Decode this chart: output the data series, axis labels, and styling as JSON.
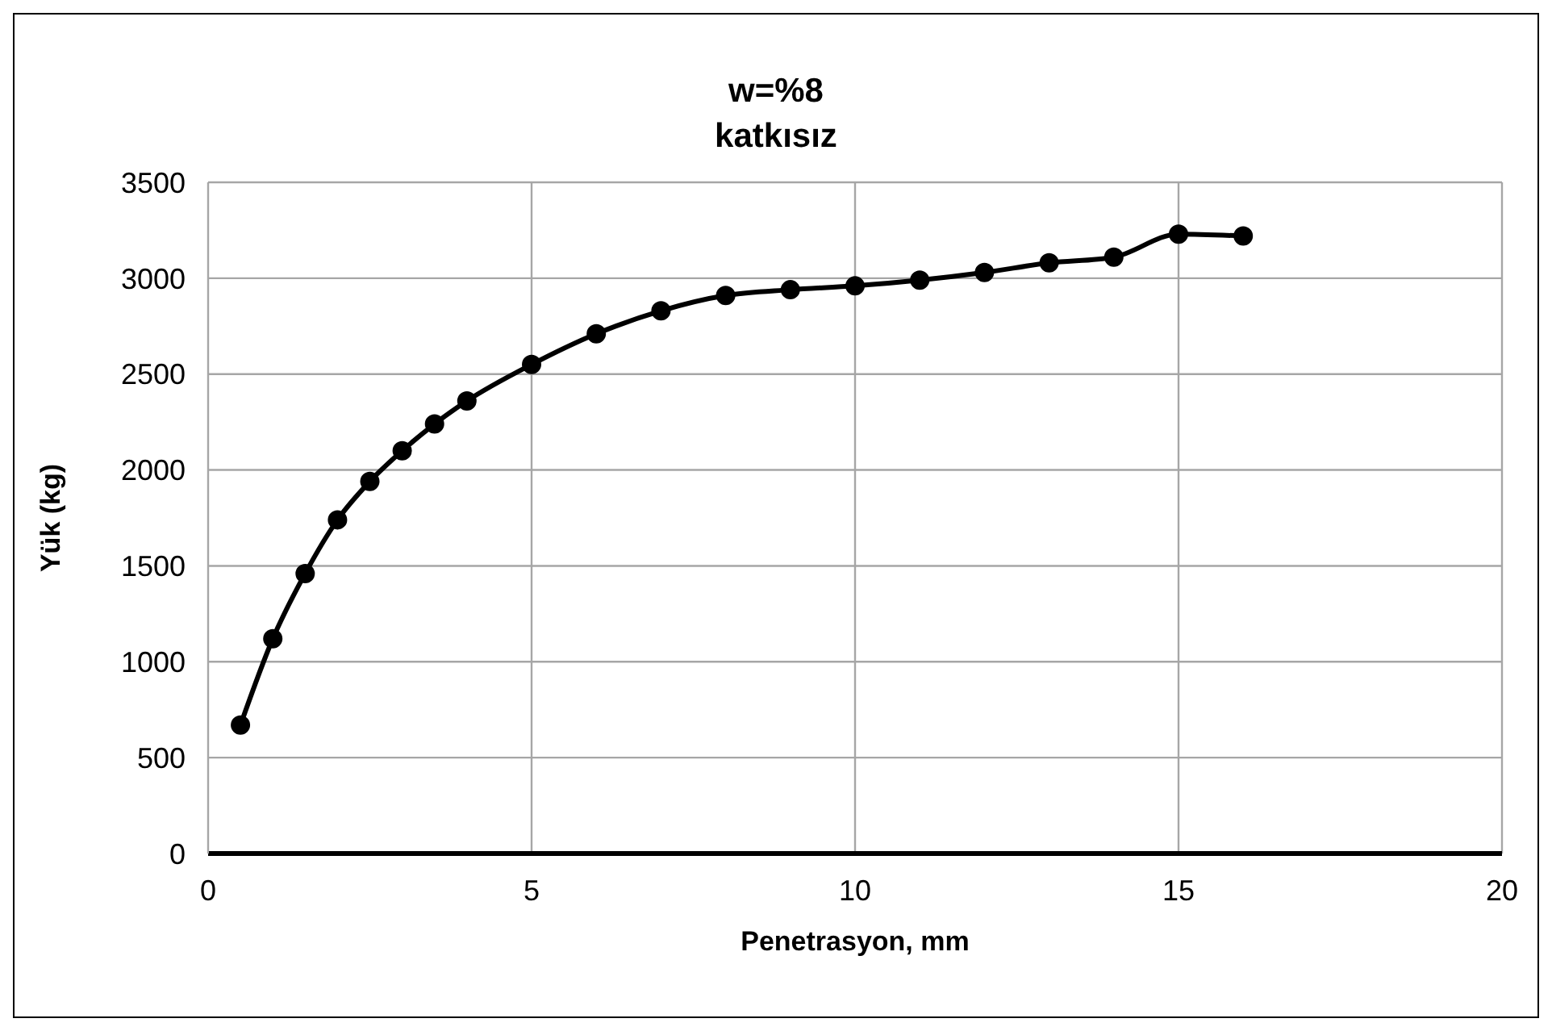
{
  "chart_data": {
    "type": "line",
    "title": "w=%8",
    "subtitle": "katkısız",
    "xlabel": "Penetrasyon, mm",
    "ylabel": "Yük (kg)",
    "x": [
      0.5,
      1,
      1.5,
      2,
      2.5,
      3,
      3.5,
      4,
      5,
      6,
      7,
      8,
      9,
      10,
      11,
      12,
      13,
      14,
      15,
      16
    ],
    "series": [
      {
        "color": "#000000",
        "values": [
          670,
          1120,
          1460,
          1740,
          1940,
          2100,
          2240,
          2360,
          2550,
          2710,
          2830,
          2910,
          2940,
          2960,
          2990,
          3030,
          3080,
          3110,
          3230,
          3220
        ]
      }
    ],
    "xlim": [
      0,
      20
    ],
    "xticks": [
      0,
      5,
      10,
      15,
      20
    ],
    "ylim": [
      0,
      3500
    ],
    "yticks": [
      0,
      500,
      1000,
      1500,
      2000,
      2500,
      3000,
      3500
    ],
    "grid": true,
    "legend": false,
    "marker": "circle",
    "line_style": "solid"
  }
}
